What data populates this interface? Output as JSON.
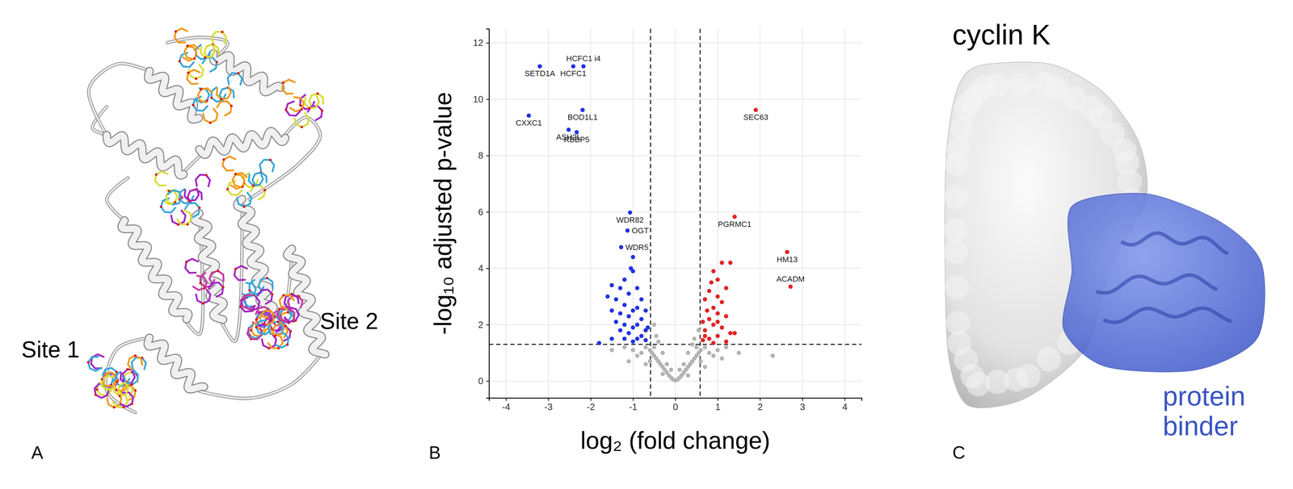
{
  "panels": {
    "a": {
      "letter": "A",
      "site_labels": [
        "Site 1",
        "Site 2"
      ]
    },
    "b": {
      "letter": "B"
    },
    "c": {
      "letter": "C",
      "title": "cyclin K",
      "binder_label": "protein binder"
    }
  },
  "chart_data": {
    "type": "scatter",
    "x_label": "log₂ (fold change)",
    "y_label": "-log₁₀ adjusted p-value",
    "xlim": [
      -4.4,
      4.4
    ],
    "ylim": [
      -0.6,
      12.5
    ],
    "xticks": [
      -4,
      -3,
      -2,
      -1,
      0,
      1,
      2,
      3,
      4
    ],
    "yticks": [
      0,
      2,
      4,
      6,
      8,
      10,
      12
    ],
    "grid": true,
    "vlines": [
      -0.585,
      0.585
    ],
    "hline": 1.301,
    "series": [
      {
        "color": "#b3b3b3",
        "marker": "circle",
        "x": [
          0,
          0.05,
          -0.05,
          0.1,
          -0.1,
          0.15,
          -0.15,
          0.2,
          -0.2,
          0.25,
          -0.25,
          0.3,
          -0.3,
          0.35,
          -0.35,
          0.4,
          -0.4,
          0.45,
          -0.45,
          0.5,
          -0.5,
          0.55,
          -0.55,
          0.6,
          -0.6,
          0.7,
          -0.7,
          0.8,
          -0.8,
          0.9,
          -0.9,
          1.0,
          -1.0,
          1.2,
          -1.2,
          0.5,
          -0.5,
          0.4,
          -0.4,
          0.3,
          -0.3,
          0.2,
          -0.2,
          0.6,
          -0.6,
          1.5,
          -1.5,
          2.3,
          0.1,
          -0.1,
          0.45,
          -0.45,
          0.3,
          -0.3,
          0.7,
          -0.7,
          1.1,
          -1.1,
          0.55,
          -0.5
        ],
        "values": [
          0.02,
          0.05,
          0.05,
          0.12,
          0.12,
          0.2,
          0.2,
          0.3,
          0.3,
          0.4,
          0.4,
          0.5,
          0.5,
          0.6,
          0.6,
          0.7,
          0.7,
          0.8,
          0.8,
          0.9,
          0.9,
          1.0,
          1.0,
          1.1,
          1.1,
          1.2,
          1.2,
          1.0,
          1.0,
          0.9,
          0.9,
          1.1,
          1.1,
          1.2,
          1.2,
          1.2,
          1.2,
          1.3,
          1.4,
          1.0,
          1.0,
          0.6,
          0.6,
          0.7,
          0.7,
          1.0,
          1.1,
          0.9,
          0.4,
          0.4,
          1.5,
          1.6,
          0.2,
          0.25,
          0.5,
          0.6,
          0.8,
          0.7,
          1.8,
          2.0
        ]
      },
      {
        "color": "#2233e0",
        "marker": "circle",
        "x": [
          -3.2,
          -2.41,
          -2.17,
          -2.19,
          -3.46,
          -2.52,
          -2.33,
          -1.07,
          -1.13,
          -1.28,
          -1.0,
          -1.0,
          -1.2,
          -1.5,
          -1.3,
          -1.6,
          -1.4,
          -1.1,
          -0.9,
          -0.8,
          -1.2,
          -0.9,
          -1.0,
          -0.7,
          -1.5,
          -1.3,
          -1.1,
          -0.8,
          -1.2,
          -1.4,
          -0.9,
          -1.0,
          -0.7,
          -1.3,
          -1.1,
          -0.8,
          -1.5,
          -1.2,
          -0.9,
          -0.7,
          -1.0,
          -1.8,
          -0.65,
          -1.05
        ],
        "values": [
          11.17,
          11.17,
          11.17,
          9.62,
          9.42,
          8.92,
          8.83,
          5.98,
          5.34,
          4.75,
          4.4,
          3.9,
          3.6,
          3.4,
          3.3,
          3.0,
          2.9,
          3.1,
          3.3,
          2.9,
          2.7,
          2.6,
          2.5,
          2.5,
          2.5,
          2.4,
          2.3,
          2.2,
          2.0,
          2.1,
          2.0,
          1.9,
          1.8,
          1.8,
          1.7,
          1.6,
          1.5,
          1.5,
          1.5,
          1.45,
          1.4,
          1.35,
          1.9,
          4.0
        ],
        "labels": [
          "SETD1A",
          "HCFC1",
          "HCFC1 i4",
          "BOD1L1",
          "CXXC1",
          "ASH2L",
          "RBBP5",
          "WDR82",
          "OGT",
          "WDR5",
          null,
          null,
          null,
          null,
          null,
          null,
          null,
          null,
          null,
          null,
          null,
          null,
          null,
          null,
          null,
          null,
          null,
          null,
          null,
          null,
          null,
          null,
          null,
          null,
          null,
          null,
          null,
          null,
          null,
          null,
          null,
          null,
          null,
          null
        ]
      },
      {
        "color": "#e02424",
        "marker": "circle",
        "x": [
          1.9,
          1.4,
          2.64,
          2.72,
          1.1,
          1.3,
          0.9,
          1.0,
          1.2,
          0.8,
          1.0,
          0.7,
          1.1,
          0.9,
          0.75,
          1.0,
          1.2,
          0.8,
          0.65,
          0.9,
          1.1,
          0.7,
          1.3,
          1.0,
          0.8,
          0.65,
          1.2,
          0.9,
          0.7,
          1.4,
          1.0,
          0.85
        ],
        "values": [
          9.62,
          5.83,
          4.58,
          3.35,
          4.2,
          4.2,
          3.9,
          3.6,
          3.3,
          3.2,
          3.0,
          2.9,
          2.8,
          2.6,
          2.5,
          2.4,
          2.3,
          2.2,
          2.1,
          2.0,
          1.9,
          1.8,
          1.7,
          1.6,
          1.5,
          1.45,
          1.4,
          1.35,
          1.6,
          1.7,
          2.1,
          3.5
        ],
        "labels": [
          "SEC63",
          "PGRMC1",
          "HM13",
          "ACADM",
          null,
          null,
          null,
          null,
          null,
          null,
          null,
          null,
          null,
          null,
          null,
          null,
          null,
          null,
          null,
          null,
          null,
          null,
          null,
          null,
          null,
          null,
          null,
          null,
          null,
          null,
          null,
          null
        ]
      }
    ]
  }
}
